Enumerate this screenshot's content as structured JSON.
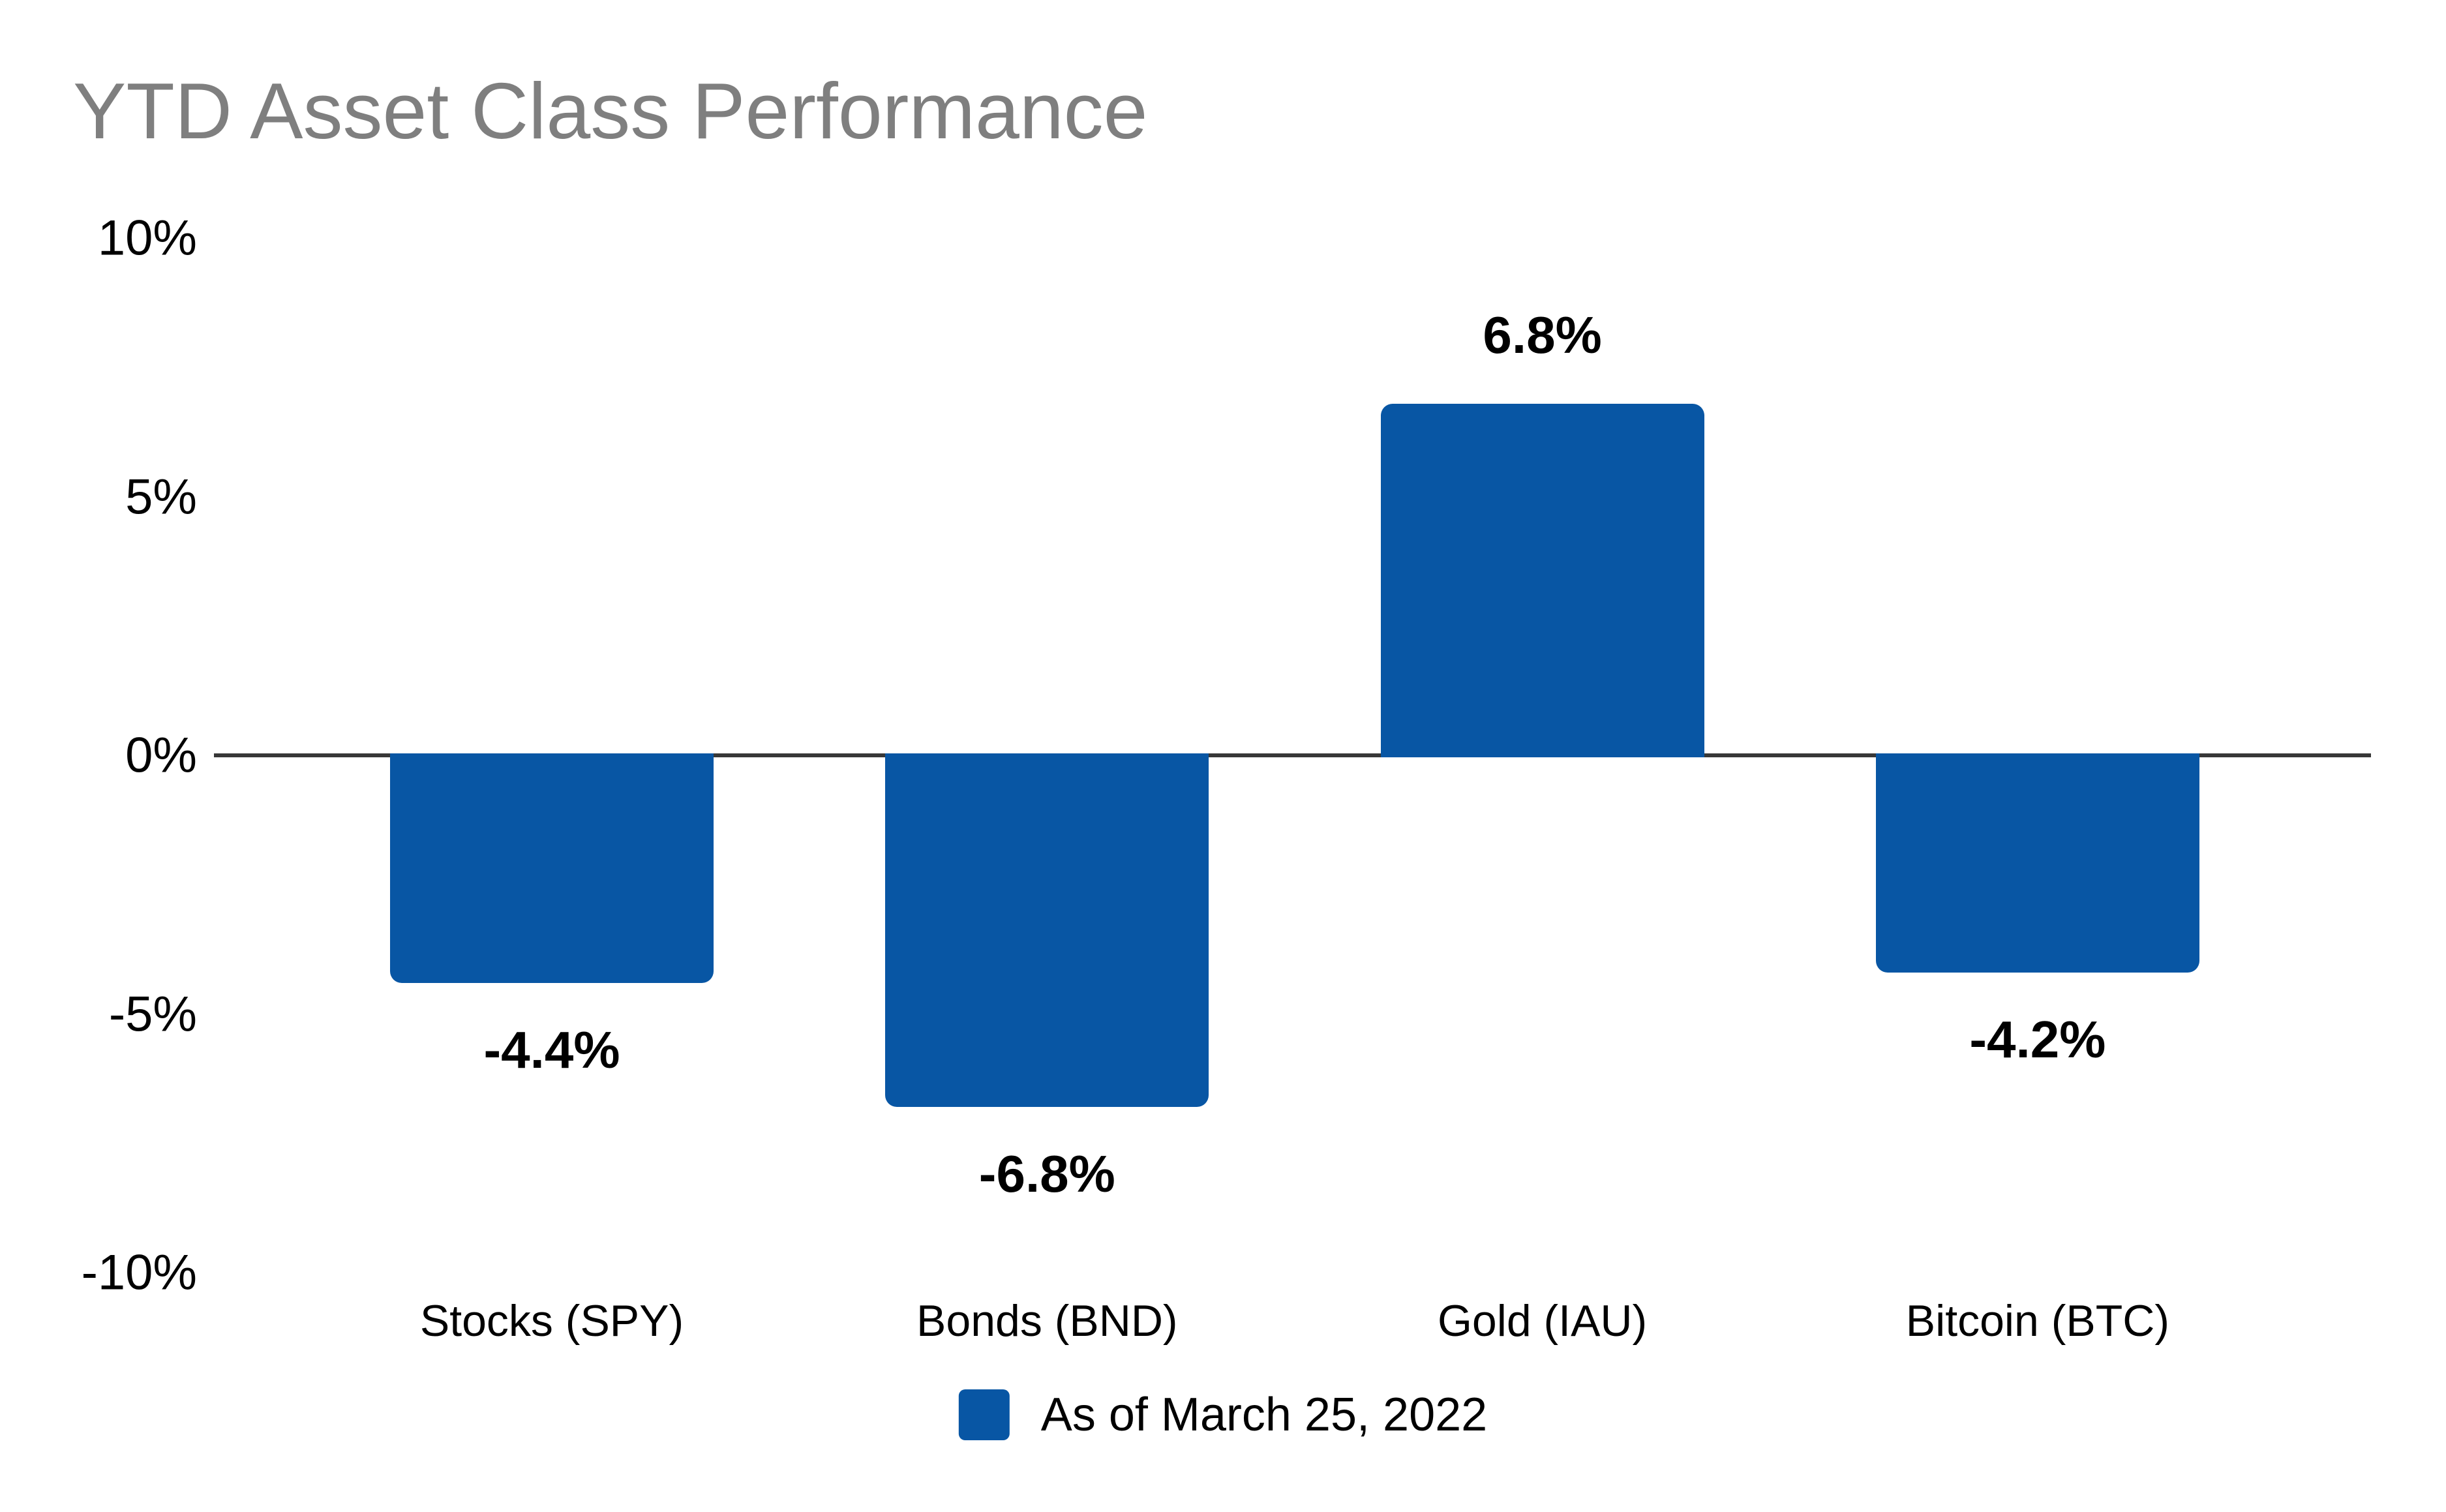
{
  "title": "YTD Asset Class Performance",
  "legend": {
    "label": "As of March 25, 2022"
  },
  "chart_data": {
    "type": "bar",
    "title": "YTD Asset Class Performance",
    "categories": [
      "Stocks (SPY)",
      "Bonds (BND)",
      "Gold (IAU)",
      "Bitcoin (BTC)"
    ],
    "series": [
      {
        "name": "As of March 25, 2022",
        "values": [
          -4.4,
          -6.8,
          6.8,
          -4.2
        ]
      }
    ],
    "value_labels": [
      "-4.4%",
      "-6.8%",
      "6.8%",
      "-4.2%"
    ],
    "ytick_labels": [
      "10%",
      "5%",
      "0%",
      "-5%",
      "-10%"
    ],
    "ytick_values": [
      10,
      5,
      0,
      -5,
      -10
    ],
    "ylim": [
      -10,
      10
    ],
    "xlabel": "",
    "ylabel": "",
    "grid": false,
    "legend_position": "bottom",
    "bar_color": "#0856A4",
    "axis_line_color": "#383838",
    "title_color": "#7f7f7f",
    "label_color": "#000000"
  }
}
